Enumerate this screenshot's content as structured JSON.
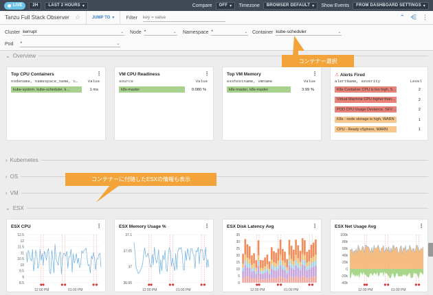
{
  "topbar": {
    "live_label": "LIVE",
    "range_short": "2H",
    "range_label": "LAST 2 HOURS",
    "compare_label": "Compare",
    "compare_value": "OFF",
    "timezone_label": "Timezone",
    "timezone_value": "BROWSER DEFAULT",
    "events_label": "Show Events",
    "events_value": "FROM DASHBOARD SETTINGS"
  },
  "header": {
    "title": "Tanzu Full Stack Observer",
    "jump_to": "JUMP TO",
    "filter_label": "Filter",
    "filter_placeholder": "key = value"
  },
  "variables": {
    "cluster": {
      "name": "Cluster",
      "value": "kerrupt"
    },
    "node": {
      "name": "Node",
      "value": "*"
    },
    "namespace": {
      "name": "Namespace",
      "value": "*"
    },
    "container": {
      "name": "Container",
      "value": "kube-scheduler"
    },
    "pod": {
      "name": "Pod",
      "value": "*"
    }
  },
  "sections": {
    "overview": "Overview",
    "kubernetes": "Kubernetes",
    "os": "OS",
    "vm": "VM",
    "esx": "ESX"
  },
  "callouts": {
    "container": "コンテナー選択",
    "esx": "コンテナーに付随したESXの情報も表示"
  },
  "overview_cards": {
    "cpu_containers": {
      "title": "Top CPU Containers",
      "col_key": "nodename, namespace_name, c…",
      "col_value": "Value",
      "rows": [
        {
          "label": "kube-system, kube-scheduler, k…",
          "value": "1 ms",
          "color": "#a9d18e"
        }
      ]
    },
    "vm_cpu_readiness": {
      "title": "VM CPU Readiness",
      "col_key": "source",
      "col_value": "Value",
      "rows": [
        {
          "label": "k8s-master",
          "value": "0.080 %",
          "color": "#a9d18e"
        }
      ]
    },
    "vm_memory": {
      "title": "Top VM Memory",
      "col_key": "esxhostname, vmname",
      "col_value": "Value",
      "rows": [
        {
          "label": "k8s-master, k8s-master",
          "value": "3.99 %",
          "color": "#a9d18e"
        }
      ]
    },
    "alerts": {
      "title": "Alerts Fired",
      "col_key": "alertName, severity",
      "col_value": "Level",
      "rows": [
        {
          "label": "K8s Container CPU is too high, S…",
          "value": "2",
          "color": "#e8837a"
        },
        {
          "label": "Virtual Machine CPU higher than…",
          "value": "2",
          "color": "#e8837a"
        },
        {
          "label": "POD CPU Usage Deviance, SEV…",
          "value": "2",
          "color": "#e8837a"
        },
        {
          "label": "K8s - node storage is high, WARN",
          "value": "1",
          "color": "#f7c78b"
        },
        {
          "label": "CPU - Ready vSphere, WARN",
          "value": "1",
          "color": "#f7c78b"
        }
      ]
    }
  },
  "esx_charts": [
    {
      "title": "ESX CPU",
      "y_ticks": [
        "12.5",
        "12",
        "11.5",
        "11",
        "10.5",
        "10",
        "9.5",
        "9",
        "8.5"
      ],
      "x_ticks": [
        "12:00 PM",
        "01:00 PM"
      ],
      "kind": "line",
      "color": "#6aaee0"
    },
    {
      "title": "ESX Memory Usage %",
      "y_ticks": [
        "37.1",
        "37.05",
        "37",
        "36.95"
      ],
      "x_ticks": [
        "12:00 PM",
        "01:00 PM"
      ],
      "kind": "line",
      "color": "#6aaee0"
    },
    {
      "title": "ESX Disk Latency Avg",
      "y_ticks": [
        "35",
        "30",
        "25",
        "20",
        "15",
        "10",
        "5",
        "0"
      ],
      "x_ticks": [
        "12:00 PM",
        "01:00 PM"
      ],
      "kind": "stack",
      "color": "#f08c5a"
    },
    {
      "title": "ESX Net Usage Avg",
      "y_ticks": [
        "100k",
        "80k",
        "60k",
        "40k",
        "20k",
        "0",
        "-20k",
        "-40k"
      ],
      "x_ticks": [
        "12:00 PM",
        "01:00 PM"
      ],
      "kind": "area",
      "color": "#f3b26b"
    }
  ]
}
